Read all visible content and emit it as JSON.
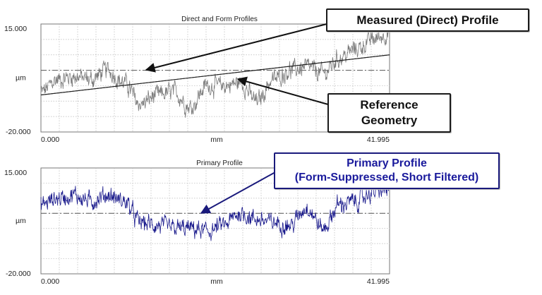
{
  "colors": {
    "direct_profile": "#7a7a7a",
    "form_line": "#202020",
    "primary_profile": "#1a1a8c",
    "grid": "#b8b8b8",
    "mean_line": "#555555"
  },
  "annotations": {
    "measured": "Measured (Direct) Profile",
    "reference_line1": "Reference",
    "reference_line2": "Geometry",
    "primary_line1": "Primary Profile",
    "primary_line2": "(Form-Suppressed, Short Filtered)"
  },
  "chart_data": [
    {
      "type": "line",
      "title": "Direct and Form Profiles",
      "xlabel": "mm",
      "ylabel": "µm",
      "x_tick_labels": [
        "0.000",
        "41.995"
      ],
      "y_tick_labels": [
        "15.000",
        "-20.000"
      ],
      "xlim": [
        0,
        41.995
      ],
      "ylim": [
        -20,
        15
      ],
      "grid": true,
      "series": [
        {
          "role": "measured",
          "color": "#7a7a7a",
          "x": [
            0,
            2,
            4,
            6,
            8,
            10,
            12,
            14,
            16,
            18,
            20,
            22,
            24,
            26,
            28,
            30,
            32,
            34,
            36,
            38,
            40,
            41.995
          ],
          "y": [
            -7,
            -3,
            -2,
            -3,
            0,
            -4,
            -11,
            -8,
            -7,
            -12,
            -5,
            -5,
            -4,
            -10,
            -3,
            0,
            1,
            -1,
            4,
            7,
            10,
            12
          ]
        },
        {
          "role": "reference",
          "color": "#202020",
          "x": [
            0,
            41.995
          ],
          "y": [
            -8,
            5
          ]
        }
      ],
      "mean_line_y": 0
    },
    {
      "type": "line",
      "title": "Primary Profile",
      "xlabel": "mm",
      "ylabel": "µm",
      "x_tick_labels": [
        "0.000",
        "41.995"
      ],
      "y_tick_labels": [
        "15.000",
        "-20.000"
      ],
      "xlim": [
        0,
        41.995
      ],
      "ylim": [
        -20,
        15
      ],
      "grid": true,
      "series": [
        {
          "role": "primary",
          "color": "#1a1a8c",
          "x": [
            0,
            2,
            4,
            6,
            8,
            10,
            12,
            14,
            16,
            18,
            20,
            22,
            24,
            26,
            28,
            30,
            32,
            34,
            36,
            38,
            40,
            41.995
          ],
          "y": [
            3,
            5,
            6,
            4,
            6,
            4,
            -3,
            -4,
            -5,
            -5,
            -6,
            -4,
            0,
            -2,
            -3,
            -4,
            2,
            -5,
            3,
            4,
            7,
            8
          ]
        }
      ],
      "mean_line_y": 0
    }
  ]
}
